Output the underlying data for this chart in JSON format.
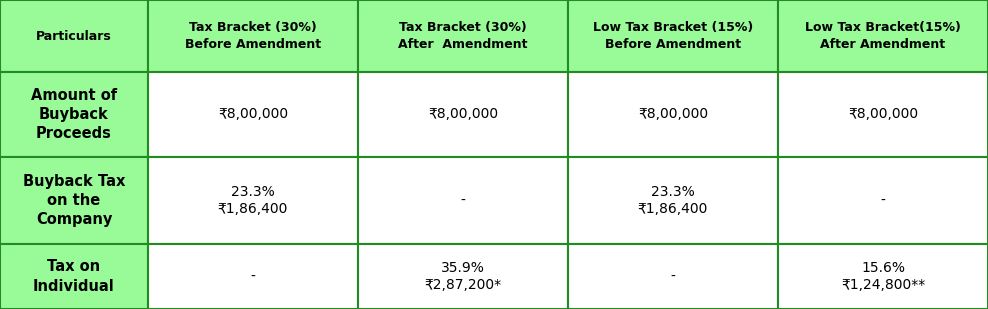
{
  "header_bg": "#98FB98",
  "row_bg_label": "#98FB98",
  "row_bg_data": "#FFFFFF",
  "border_color": "#228B22",
  "col_headers": [
    "Particulars",
    "Tax Bracket (30%)\nBefore Amendment",
    "Tax Bracket (30%)\nAfter  Amendment",
    "Low Tax Bracket (15%)\nBefore Amendment",
    "Low Tax Bracket(15%)\nAfter Amendment"
  ],
  "row_labels": [
    "Amount of\nBuyback\nProceeds",
    "Buyback Tax\non the\nCompany",
    "Tax on\nIndividual"
  ],
  "cell_data": [
    [
      "₹8,00,000",
      "₹8,00,000",
      "₹8,00,000",
      "₹8,00,000"
    ],
    [
      "23.3%\n₹1,86,400",
      "-",
      "23.3%\n₹1,86,400",
      "-"
    ],
    [
      "-",
      "35.9%\n₹2,87,200*",
      "-",
      "15.6%\n₹1,24,800**"
    ]
  ],
  "fig_width": 9.88,
  "fig_height": 3.09,
  "dpi": 100,
  "header_fontsize": 9.0,
  "data_fontsize": 10.0,
  "label_fontsize": 10.5
}
